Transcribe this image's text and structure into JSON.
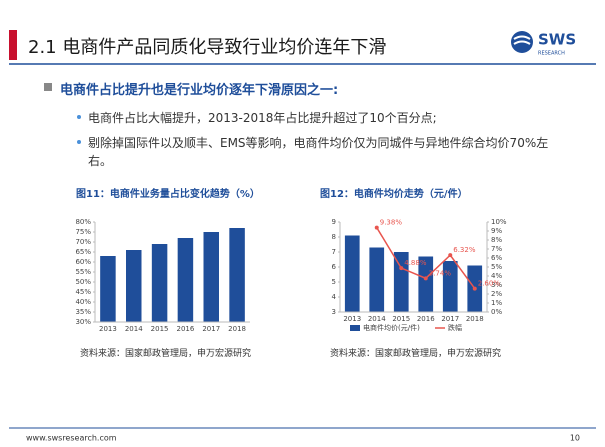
{
  "slide": {
    "title": "2.1 电商件产品同质化导致行业均价连年下滑",
    "logo": "SWS",
    "logo_sub": "RESEARCH",
    "heading": "电商件占比提升也是行业均价逐年下滑原因之一:",
    "bullets": [
      "电商件占比大幅提升，2013-2018年占比提升超过了10个百分点;",
      "剔除掉国际件以及顺丰、EMS等影响，电商件均价仅为同城件与异地件综合均价70%左右。"
    ],
    "sources": [
      "资料来源：国家邮政管理局，申万宏源研究",
      "资料来源：国家邮政管理局，申万宏源研究"
    ],
    "footer": "www.swsresearch.com",
    "page": "10"
  },
  "chart_data": [
    {
      "type": "bar",
      "title": "图11：电商件业务量占比变化趋势（%）",
      "categories": [
        "2013",
        "2014",
        "2015",
        "2016",
        "2017",
        "2018"
      ],
      "values": [
        63,
        66,
        69,
        72,
        75,
        77
      ],
      "color": "#1f4e9a",
      "ylim": [
        30,
        80
      ],
      "yticks": [
        {
          "value": 30,
          "label": "30%"
        },
        {
          "value": 35,
          "label": "35%"
        },
        {
          "value": 40,
          "label": "40%"
        },
        {
          "value": 45,
          "label": "45%"
        },
        {
          "value": 50,
          "label": "50%"
        },
        {
          "value": 55,
          "label": "55%"
        },
        {
          "value": 60,
          "label": "60%"
        },
        {
          "value": 65,
          "label": "65%"
        },
        {
          "value": 70,
          "label": "70%"
        },
        {
          "value": 75,
          "label": "75%"
        },
        {
          "value": 80,
          "label": "80%"
        }
      ]
    },
    {
      "type": "bar_line",
      "title": "图12：电商件均价走势（元/件）",
      "categories": [
        "2013",
        "2014",
        "2015",
        "2016",
        "2017",
        "2018"
      ],
      "series": [
        {
          "name": "电商件均价(元/件)",
          "color": "#1f4e9a",
          "values": [
            8.1,
            7.3,
            7.0,
            6.7,
            6.4,
            6.1
          ]
        },
        {
          "name": "跌幅",
          "color": "#e8554e",
          "axis": "y2",
          "values": [
            null,
            9.38,
            4.88,
            3.74,
            6.32,
            2.6
          ],
          "value_labels": [
            null,
            "9.38%",
            "4.88%",
            "3.74%",
            "6.32%",
            "2.60%"
          ]
        }
      ],
      "ylim": [
        3,
        9
      ],
      "yticks": [
        3,
        4,
        5,
        6,
        7,
        8,
        9
      ],
      "y2lim": [
        0,
        10
      ],
      "y2ticks": [
        {
          "value": 0,
          "label": "0%"
        },
        {
          "value": 1,
          "label": "1%"
        },
        {
          "value": 2,
          "label": "2%"
        },
        {
          "value": 3,
          "label": "3%"
        },
        {
          "value": 4,
          "label": "4%"
        },
        {
          "value": 5,
          "label": "5%"
        },
        {
          "value": 6,
          "label": "6%"
        },
        {
          "value": 7,
          "label": "7%"
        },
        {
          "value": 8,
          "label": "8%"
        },
        {
          "value": 9,
          "label": "9%"
        },
        {
          "value": 10,
          "label": "10%"
        }
      ]
    }
  ]
}
